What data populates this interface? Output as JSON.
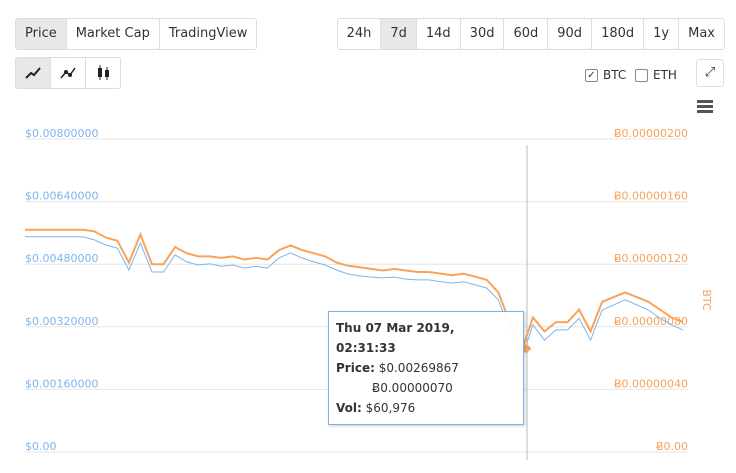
{
  "ui": {
    "views": [
      "Price",
      "Market Cap",
      "TradingView"
    ],
    "ranges": [
      "24h",
      "7d",
      "14d",
      "30d",
      "60d",
      "90d",
      "180d",
      "1y",
      "Max"
    ],
    "checks": [
      "BTC",
      "ETH"
    ]
  },
  "chart_data": {
    "type": "line",
    "grid": true,
    "ylim": [
      0,
      0.008
    ],
    "yticks": [
      {
        "value": 0,
        "label": "$0.00"
      },
      {
        "value": 0.0016,
        "label": "$0.00160000"
      },
      {
        "value": 0.0032,
        "label": "$0.00320000"
      },
      {
        "value": 0.0048,
        "label": "$0.00480000"
      },
      {
        "value": 0.0064,
        "label": "$0.00640000"
      },
      {
        "value": 0.008,
        "label": "$0.00800000"
      }
    ],
    "y2lim": [
      0,
      2e-06
    ],
    "y2ticks": [
      {
        "value": 0,
        "label": "Ƀ0.00"
      },
      {
        "value": 4e-07,
        "label": "Ƀ0.00000040"
      },
      {
        "value": 8e-07,
        "label": "Ƀ0.00000080"
      },
      {
        "value": 1.2e-06,
        "label": "Ƀ0.00000120"
      },
      {
        "value": 1.6e-06,
        "label": "Ƀ0.00000160"
      },
      {
        "value": 2e-06,
        "label": "Ƀ0.00000200"
      }
    ],
    "y2label": "BTC",
    "series": [
      {
        "color": "#7cb5ec",
        "values": [
          0.0055,
          0.0055,
          0.0055,
          0.0055,
          0.0055,
          0.0055,
          0.00542,
          0.00529,
          0.00521,
          0.00465,
          0.00534,
          0.0046,
          0.0046,
          0.00504,
          0.00486,
          0.00478,
          0.00481,
          0.00475,
          0.00478,
          0.0047,
          0.00475,
          0.0047,
          0.00496,
          0.00509,
          0.00496,
          0.00486,
          0.00478,
          0.00465,
          0.00455,
          0.0045,
          0.00447,
          0.00445,
          0.00447,
          0.00442,
          0.0044,
          0.0044,
          0.00435,
          0.00432,
          0.00435,
          0.00427,
          0.00419,
          0.00389,
          0.00312,
          0.00235,
          0.00325,
          0.00286,
          0.00312,
          0.00312,
          0.00342,
          0.00286,
          0.00363,
          0.00376,
          0.00389,
          0.00376,
          0.00363,
          0.00342,
          0.00325,
          0.00312
        ]
      },
      {
        "name": "BTC",
        "axis": "y2",
        "color": "#f7a35c",
        "values": [
          1.42e-06,
          1.42e-06,
          1.42e-06,
          1.42e-06,
          1.42e-06,
          1.42e-06,
          1.41e-06,
          1.37e-06,
          1.35e-06,
          1.21e-06,
          1.39e-06,
          1.2e-06,
          1.2e-06,
          1.31e-06,
          1.27e-06,
          1.25e-06,
          1.25e-06,
          1.24e-06,
          1.25e-06,
          1.23e-06,
          1.24e-06,
          1.23e-06,
          1.29e-06,
          1.32e-06,
          1.29e-06,
          1.27e-06,
          1.25e-06,
          1.21e-06,
          1.19e-06,
          1.18e-06,
          1.17e-06,
          1.16e-06,
          1.17e-06,
          1.16e-06,
          1.15e-06,
          1.15e-06,
          1.14e-06,
          1.13e-06,
          1.14e-06,
          1.12e-06,
          1.1e-06,
          1.02e-06,
          8.3e-07,
          6.4e-07,
          8.6e-07,
          7.7e-07,
          8.3e-07,
          8.3e-07,
          9.1e-07,
          7.7e-07,
          9.6e-07,
          9.9e-07,
          1.02e-06,
          9.9e-07,
          9.6e-07,
          9.1e-07,
          8.6e-07,
          8.3e-07
        ]
      }
    ]
  },
  "tooltip": {
    "date": "Thu 07 Mar 2019, 02:31:33",
    "price_label": "Price:",
    "price_usd": "$0.00269867",
    "price_btc": "Ƀ0.00000070",
    "vol_label": "Vol:",
    "vol": "$60,976"
  }
}
